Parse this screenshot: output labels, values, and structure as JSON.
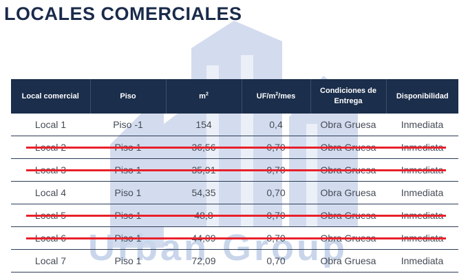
{
  "title": "LOCALES COMERCIALES",
  "watermark": {
    "brand": "Urban Group"
  },
  "table": {
    "headers": {
      "local": "Local comercial",
      "piso": "Piso",
      "m2_base": "m",
      "m2_sup": "2",
      "uf_pre": "UF/m",
      "uf_sup": "2",
      "uf_post": "/mes",
      "condiciones": "Condiciones de Entrega",
      "disponibilidad": "Disponibilidad"
    },
    "rows": [
      {
        "local": "Local 1",
        "piso": "Piso -1",
        "m2": "154",
        "uf": "0,4",
        "condiciones": "Obra Gruesa",
        "disponibilidad": "Inmediata",
        "struck": false
      },
      {
        "local": "Local 2",
        "piso": "Piso 1",
        "m2": "36,56",
        "uf": "0,70",
        "condiciones": "Obra Gruesa",
        "disponibilidad": "Inmediata",
        "struck": true
      },
      {
        "local": "Local 3",
        "piso": "Piso 1",
        "m2": "35,91",
        "uf": "0,70",
        "condiciones": "Obra Gruesa",
        "disponibilidad": "Inmediata",
        "struck": true
      },
      {
        "local": "Local 4",
        "piso": "Piso 1",
        "m2": "54,35",
        "uf": "0,70",
        "condiciones": "Obra Gruesa",
        "disponibilidad": "Inmediata",
        "struck": false
      },
      {
        "local": "Local 5",
        "piso": "Piso 1",
        "m2": "48,8",
        "uf": "0,70",
        "condiciones": "Obra Gruesa",
        "disponibilidad": "Inmediata",
        "struck": true
      },
      {
        "local": "Local 6",
        "piso": "Piso 1",
        "m2": "44,09",
        "uf": "0,70",
        "condiciones": "Obra Gruesa",
        "disponibilidad": "Inmediata",
        "struck": true
      },
      {
        "local": "Local 7",
        "piso": "Piso 1",
        "m2": "72,09",
        "uf": "0,70",
        "condiciones": "Obra Gruesa",
        "disponibilidad": "Inmediata",
        "struck": false
      }
    ]
  },
  "colors": {
    "header_bg": "#1b2e4b",
    "title": "#1a2b4a",
    "strike": "#e8202a",
    "watermark": "#c9d5ea"
  }
}
